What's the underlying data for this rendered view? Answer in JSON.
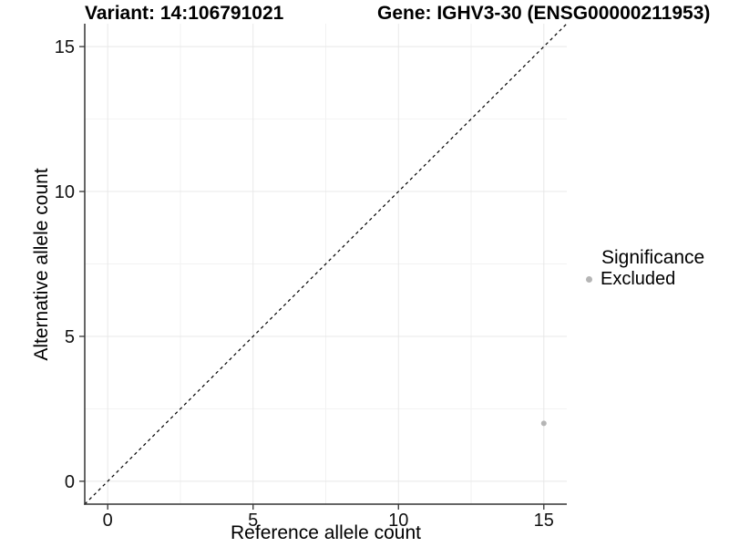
{
  "chart_data": {
    "type": "scatter",
    "title_left": "Variant: 14:106791021",
    "title_right": "Gene: IGHV3-30 (ENSG00000211953)",
    "xlabel": "Reference allele count",
    "ylabel": "Alternative allele count",
    "xlim": [
      -0.79,
      15.79
    ],
    "ylim": [
      -0.79,
      15.79
    ],
    "x_ticks": [
      0,
      5,
      10,
      15
    ],
    "y_ticks": [
      0,
      5,
      10,
      15
    ],
    "x_minor_ticks": [
      2.5,
      7.5,
      12.5
    ],
    "y_minor_ticks": [
      2.5,
      7.5,
      12.5
    ],
    "grid": true,
    "points": [
      {
        "x": 15,
        "y": 2,
        "series": "Excluded"
      }
    ],
    "reference_line": {
      "type": "identity",
      "slope": 1,
      "intercept": 0,
      "style": "dashed"
    },
    "legend": {
      "title": "Significance",
      "position": "right",
      "items": [
        {
          "label": "Excluded",
          "color": "#b5b5b5"
        }
      ]
    },
    "colors": {
      "point_excluded": "#b5b5b5",
      "grid_major": "#e8e8e8",
      "grid_minor": "#f2f2f2",
      "axis_line": "#333333",
      "tick_label": "#111111",
      "reference_line": "#000000",
      "background": "#ffffff"
    }
  }
}
